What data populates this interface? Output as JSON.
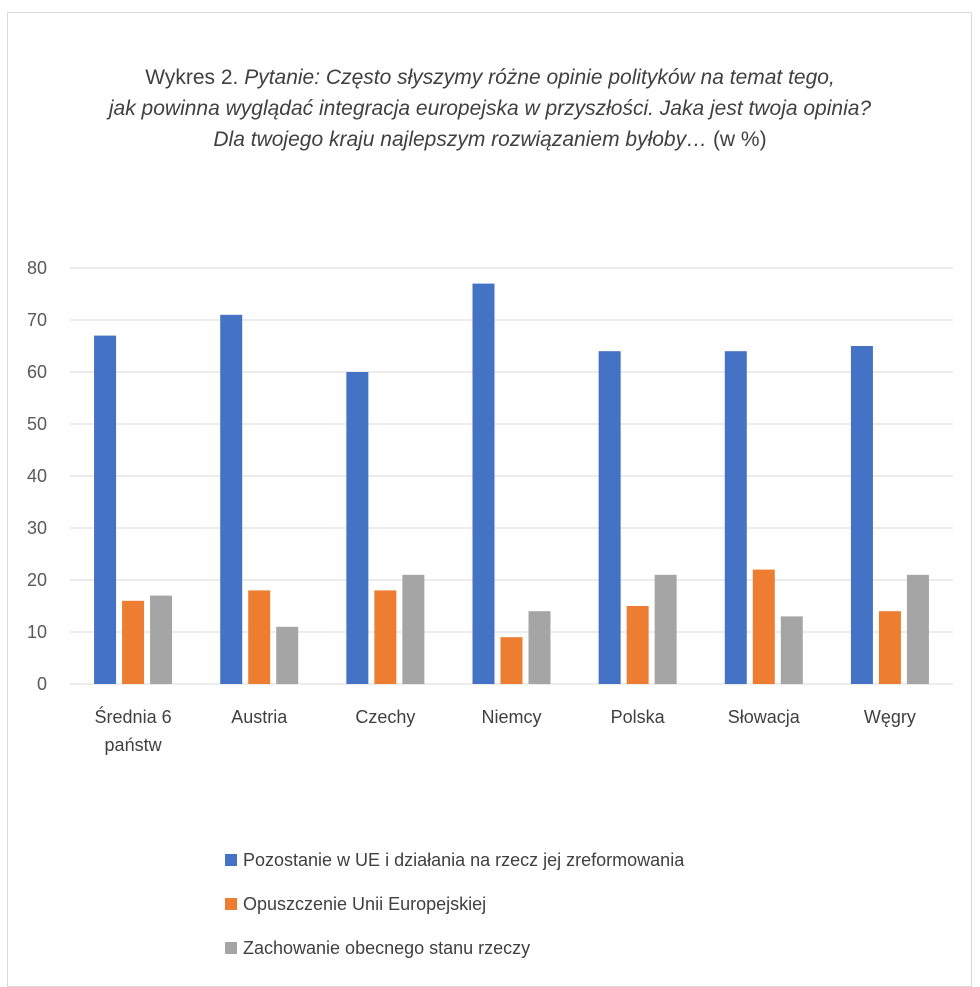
{
  "title": {
    "prefix": "Wykres 2. ",
    "italic_1": "Pytanie: Często słyszymy różne opinie polityków na temat tego,",
    "italic_2": "jak powinna wyglądać integracja europejska w przyszłości. Jaka jest twoja opinia?",
    "italic_3": "Dla twojego kraju najlepszym rozwiązaniem byłoby…",
    "suffix": " (w %)"
  },
  "chart_data": {
    "type": "bar",
    "categories": [
      [
        "Średnia 6",
        "państw"
      ],
      [
        "Austria"
      ],
      [
        "Czechy"
      ],
      [
        "Niemcy"
      ],
      [
        "Polska"
      ],
      [
        "Słowacja"
      ],
      [
        "Węgry"
      ]
    ],
    "series": [
      {
        "name": "Pozostanie w UE i działania na rzecz jej zreformowania",
        "color": "#4472c4",
        "values": [
          67,
          71,
          60,
          77,
          64,
          64,
          65
        ]
      },
      {
        "name": "Opuszczenie Unii Europejskiej",
        "color": "#ed7d31",
        "values": [
          16,
          18,
          18,
          9,
          15,
          22,
          14
        ]
      },
      {
        "name": "Zachowanie obecnego stanu rzeczy",
        "color": "#a5a5a5",
        "values": [
          17,
          11,
          21,
          14,
          21,
          13,
          21
        ]
      }
    ],
    "ylim": [
      0,
      80
    ],
    "yticks": [
      0,
      10,
      20,
      30,
      40,
      50,
      60,
      70,
      80
    ],
    "grid": true,
    "legend_position": "bottom"
  }
}
